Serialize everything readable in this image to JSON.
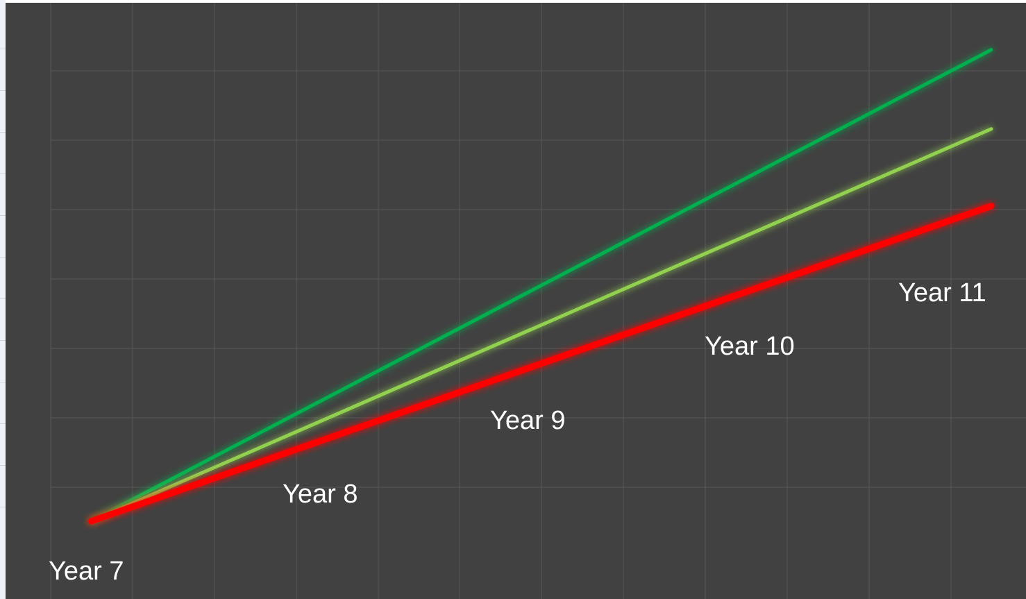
{
  "chart_data": {
    "type": "line",
    "title": "",
    "xlabel": "",
    "ylabel": "",
    "grid": true,
    "legend": "none",
    "categories": [
      "Year 7",
      "Year 8",
      "Year 9",
      "Year 10",
      "Year 11"
    ],
    "x": [
      7,
      11
    ],
    "ylim": [
      0,
      7
    ],
    "series": [
      {
        "color": "#00b050",
        "values": [
          0,
          6.55
        ]
      },
      {
        "color": "#92d050",
        "values": [
          0,
          5.45
        ]
      },
      {
        "color": "#ff0000",
        "values": [
          0,
          4.38
        ]
      }
    ]
  }
}
